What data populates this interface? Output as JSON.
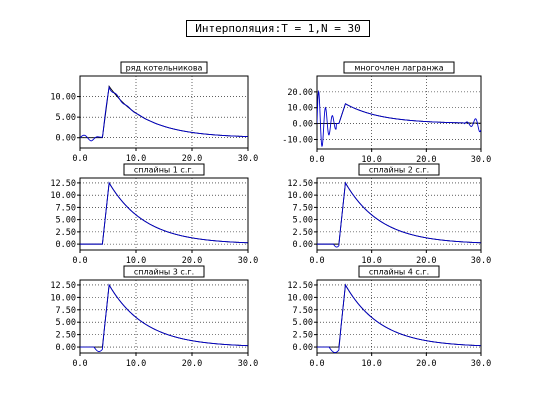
{
  "title": "Интерполяция:T = 1,N = 30",
  "colors": {
    "interp": "#0000cc",
    "source": "#000000",
    "grid": "#000000"
  },
  "source_label_note": "",
  "chart_data": [
    {
      "type": "line",
      "title": "ряд котельникова",
      "xlim": [
        0,
        30
      ],
      "ylim": [
        -2.5,
        15
      ],
      "xticks": [
        0,
        10,
        20,
        30
      ],
      "xtick_labels": [
        "0.0",
        "10.0",
        "20.0",
        "30.0"
      ],
      "yticks": [
        0,
        5,
        10
      ],
      "ytick_labels": [
        "0.00",
        "5.00",
        "10.00"
      ],
      "grid": true,
      "variant": "sinc"
    },
    {
      "type": "line",
      "title": "многочлен лагранжа",
      "xlim": [
        0,
        30
      ],
      "ylim": [
        -16,
        30
      ],
      "xticks": [
        0,
        10,
        20,
        30
      ],
      "xtick_labels": [
        "0.0",
        "10.0",
        "20.0",
        "30.0"
      ],
      "yticks": [
        -10,
        0,
        10,
        20
      ],
      "ytick_labels": [
        "-10.00",
        "0.00",
        "10.00",
        "20.00"
      ],
      "grid": true,
      "variant": "lagrange"
    },
    {
      "type": "line",
      "title": "сплайны 1 с.г.",
      "xlim": [
        0,
        30
      ],
      "ylim": [
        -1.2,
        13.5
      ],
      "xticks": [
        0,
        10,
        20,
        30
      ],
      "xtick_labels": [
        "0.0",
        "10.0",
        "20.0",
        "30.0"
      ],
      "yticks": [
        0,
        2.5,
        5,
        7.5,
        10,
        12.5
      ],
      "ytick_labels": [
        "0.00",
        "2.50",
        "5.00",
        "7.50",
        "10.00",
        "12.50"
      ],
      "grid": true,
      "variant": "spline1"
    },
    {
      "type": "line",
      "title": "сплайны 2 с.г.",
      "xlim": [
        0,
        30
      ],
      "ylim": [
        -1.2,
        13.5
      ],
      "xticks": [
        0,
        10,
        20,
        30
      ],
      "xtick_labels": [
        "0.0",
        "10.0",
        "20.0",
        "30.0"
      ],
      "yticks": [
        0,
        2.5,
        5,
        7.5,
        10,
        12.5
      ],
      "ytick_labels": [
        "0.00",
        "2.50",
        "5.00",
        "7.50",
        "10.00",
        "12.50"
      ],
      "grid": true,
      "variant": "spline2"
    },
    {
      "type": "line",
      "title": "сплайны 3 с.г.",
      "xlim": [
        0,
        30
      ],
      "ylim": [
        -1.2,
        13.5
      ],
      "xticks": [
        0,
        10,
        20,
        30
      ],
      "xtick_labels": [
        "0.0",
        "10.0",
        "20.0",
        "30.0"
      ],
      "yticks": [
        0,
        2.5,
        5,
        7.5,
        10,
        12.5
      ],
      "ytick_labels": [
        "0.00",
        "2.50",
        "5.00",
        "7.50",
        "10.00",
        "12.50"
      ],
      "grid": true,
      "variant": "spline3"
    },
    {
      "type": "line",
      "title": "сплайны 4 с.г.",
      "xlim": [
        0,
        30
      ],
      "ylim": [
        -1.2,
        13.5
      ],
      "xticks": [
        0,
        10,
        20,
        30
      ],
      "xtick_labels": [
        "0.0",
        "10.0",
        "20.0",
        "30.0"
      ],
      "yticks": [
        0,
        2.5,
        5,
        7.5,
        10,
        12.5
      ],
      "ytick_labels": [
        "0.00",
        "2.50",
        "5.00",
        "7.50",
        "10.00",
        "12.50"
      ],
      "grid": true,
      "variant": "spline4"
    }
  ]
}
